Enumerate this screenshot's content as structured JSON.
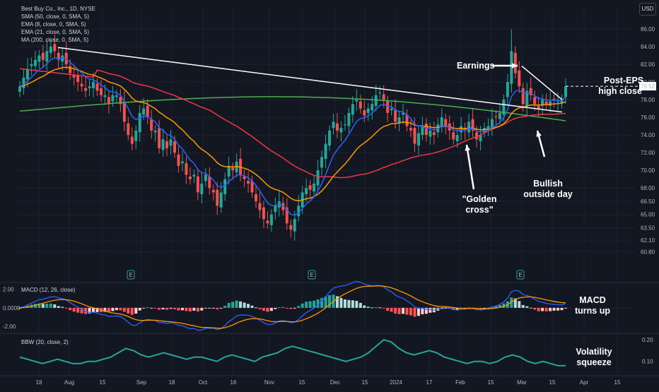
{
  "header": {
    "title": "Best Buy Co., Inc., 1D, NYSE",
    "indicators": [
      "SMA (50, close, 0, SMA, 5)",
      "EMA (8, close, 0, SMA, 5)",
      "EMA (21, close, 0, SMA, 5)",
      "MA (200, close, 0, SMA, 5)"
    ],
    "currency": "USD",
    "last_price": "79.52"
  },
  "colors": {
    "background": "#131722",
    "up": "#26a69a",
    "down": "#ef5350",
    "sma50": "#f23645",
    "ema8": "#2962ff",
    "ema21": "#ff9800",
    "ma200": "#4caf50",
    "trendline": "#ffffff",
    "macd_line": "#2962ff",
    "signal_line": "#ff9800",
    "bbw_line": "#26a69a"
  },
  "annotations": {
    "earnings": "Earnings",
    "post_eps": [
      "Post-EPS",
      "high close"
    ],
    "bullish": [
      "Bullish",
      "outside day"
    ],
    "golden": [
      "\"Golden",
      "cross\""
    ],
    "macd": [
      "MACD",
      "turns up"
    ],
    "volatility": [
      "Volatility",
      "squeeze"
    ]
  },
  "price_axis": [
    "86.00",
    "84.00",
    "82.00",
    "80.00",
    "78.00",
    "76.00",
    "74.00",
    "72.00",
    "70.00",
    "68.00",
    "66.50",
    "65.00",
    "63.50",
    "62.10",
    "60.80"
  ],
  "macd_axis": [
    "2.00",
    "0.0000",
    "-2.00"
  ],
  "bbw_axis": [
    "0.20",
    "0.10"
  ],
  "time_axis": [
    "18",
    "Aug",
    "15",
    "Sep",
    "18",
    "Oct",
    "16",
    "Nov",
    "15",
    "Dec",
    "15",
    "2024",
    "17",
    "Feb",
    "15",
    "Mar",
    "15",
    "Apr",
    "15"
  ],
  "earnings_marker": "E",
  "pane_labels": {
    "macd": "MACD (12, 26, close)",
    "bbw": "BBW (20, close, 2)"
  },
  "chart_data": [
    {
      "type": "candlestick",
      "title": "Best Buy Co., Inc., 1D, NYSE",
      "ylim": [
        60.8,
        86.5
      ],
      "x_ticks": [
        "18",
        "Aug",
        "15",
        "Sep",
        "18",
        "Oct",
        "16",
        "Nov",
        "15",
        "Dec",
        "15",
        "2024",
        "17",
        "Feb",
        "15",
        "Mar",
        "15",
        "Apr",
        "15"
      ],
      "close_series": [
        79.5,
        80.5,
        81.5,
        82.0,
        82.5,
        83.0,
        82.5,
        83.5,
        84.0,
        83.5,
        82.5,
        83.0,
        82.0,
        81.0,
        80.5,
        80.0,
        79.5,
        79.0,
        79.5,
        80.0,
        79.0,
        78.5,
        78.5,
        77.5,
        78.5,
        78.5,
        77.5,
        75.5,
        74.0,
        73.0,
        74.5,
        76.5,
        77.0,
        76.0,
        74.5,
        74.5,
        72.5,
        73.5,
        72.5,
        73.5,
        72.0,
        70.5,
        71.0,
        69.5,
        69.0,
        69.5,
        67.5,
        68.5,
        69.5,
        68.0,
        67.5,
        66.0,
        67.5,
        69.0,
        70.5,
        70.0,
        71.0,
        69.5,
        69.0,
        68.5,
        67.5,
        66.5,
        65.5,
        64.5,
        64.0,
        65.0,
        66.0,
        66.5,
        65.5,
        64.0,
        63.3,
        64.5,
        66.0,
        67.5,
        68.0,
        67.8,
        68.5,
        70.0,
        71.5,
        73.0,
        74.5,
        75.5,
        74.5,
        74.8,
        75.2,
        76.5,
        77.5,
        78.0,
        77.0,
        76.2,
        77.0,
        77.5,
        78.5,
        78.8,
        78.0,
        76.5,
        77.0,
        75.5,
        76.0,
        76.5,
        75.0,
        74.5,
        73.0,
        74.2,
        75.0,
        74.0,
        74.5,
        74.0,
        75.2,
        76.0,
        75.0,
        74.5,
        73.5,
        74.0,
        75.0,
        74.5,
        75.5,
        74.5,
        73.5,
        74.0,
        74.8,
        75.0,
        75.8,
        76.0,
        76.5,
        78.0,
        80.0,
        83.5,
        81.0,
        79.5,
        77.5,
        79.0,
        78.5,
        77.5,
        77.0,
        78.0,
        77.5,
        77.8,
        78.0,
        77.8,
        78.0,
        79.5
      ],
      "series": [
        {
          "name": "SMA (50, close, 0, SMA, 5)",
          "role": "sma50"
        },
        {
          "name": "EMA (8, close, 0, SMA, 5)",
          "role": "ema8"
        },
        {
          "name": "EMA (21, close, 0, SMA, 5)",
          "role": "ema21"
        },
        {
          "name": "MA (200, close, 0, SMA, 5)",
          "role": "ma200",
          "values_start_end": [
            76.7,
            75.0
          ]
        }
      ],
      "trendline": {
        "from": [
          "Jul 20",
          83.9
        ],
        "to": [
          "Mar 20",
          76.6
        ]
      }
    },
    {
      "type": "line",
      "title": "MACD (12, 26, close)",
      "ylim": [
        -2.6,
        2.5
      ],
      "series": [
        {
          "name": "MACD",
          "role": "macd_line"
        },
        {
          "name": "Signal",
          "role": "signal_line"
        },
        {
          "name": "Histogram",
          "role": "histogram"
        }
      ]
    },
    {
      "type": "line",
      "title": "BBW (20, close, 2)",
      "ylim": [
        0.04,
        0.22
      ],
      "series": [
        {
          "name": "BBW",
          "role": "bbw_line",
          "values": [
            0.12,
            0.11,
            0.1,
            0.09,
            0.1,
            0.11,
            0.1,
            0.09,
            0.09,
            0.1,
            0.1,
            0.11,
            0.12,
            0.14,
            0.16,
            0.15,
            0.13,
            0.12,
            0.13,
            0.14,
            0.13,
            0.12,
            0.11,
            0.12,
            0.12,
            0.11,
            0.1,
            0.12,
            0.13,
            0.12,
            0.11,
            0.1,
            0.12,
            0.13,
            0.14,
            0.16,
            0.17,
            0.16,
            0.15,
            0.14,
            0.13,
            0.12,
            0.11,
            0.1,
            0.11,
            0.12,
            0.14,
            0.17,
            0.2,
            0.19,
            0.16,
            0.14,
            0.13,
            0.14,
            0.15,
            0.14,
            0.12,
            0.11,
            0.1,
            0.09,
            0.1,
            0.1,
            0.09,
            0.1,
            0.12,
            0.13,
            0.12,
            0.1,
            0.09,
            0.1,
            0.09,
            0.08,
            0.08
          ]
        }
      ]
    }
  ]
}
